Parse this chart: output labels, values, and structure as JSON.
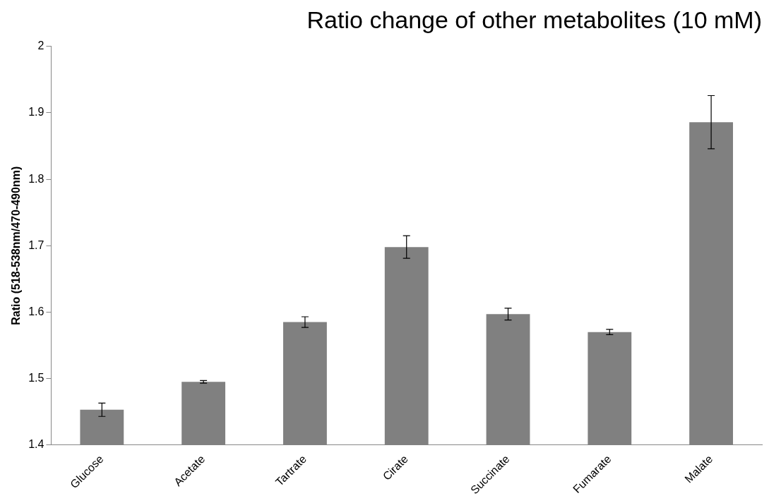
{
  "chart_data": {
    "type": "bar",
    "title": "Ratio change of other metabolites (10 mM)",
    "ylabel": "Ratio (518-538nm/470-490nm)",
    "categories": [
      "Glucose",
      "Acetate",
      "Tartrate",
      "Cirate",
      "Succinate",
      "Fumarate",
      "Malate"
    ],
    "values": [
      1.453,
      1.495,
      1.585,
      1.698,
      1.597,
      1.57,
      1.886
    ],
    "errors": [
      0.01,
      0.002,
      0.008,
      0.017,
      0.009,
      0.004,
      0.04
    ],
    "color": "#808080",
    "ylim": [
      1.4,
      2
    ],
    "yticks": [
      1.4,
      1.5,
      1.6,
      1.7,
      1.8,
      1.9,
      2
    ],
    "grid": false,
    "legend": false
  }
}
